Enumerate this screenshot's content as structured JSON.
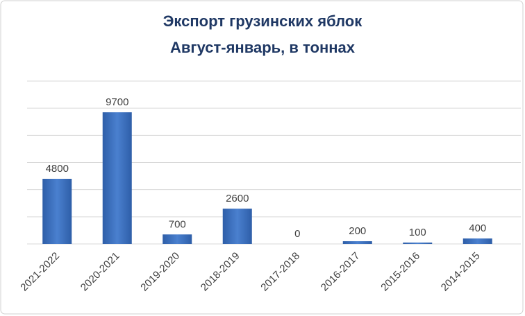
{
  "chart_data": {
    "type": "bar",
    "title": "Экспорт грузинских яблок",
    "subtitle": "Август-январь, в тоннах",
    "categories": [
      "2021-2022",
      "2020-2021",
      "2019-2020",
      "2018-2019",
      "2017-2018",
      "2016-2017",
      "2015-2016",
      "2014-2015"
    ],
    "values": [
      4800,
      9700,
      700,
      2600,
      0,
      200,
      100,
      400
    ],
    "color": "#3a6fc0",
    "ylim": [
      0,
      12000
    ],
    "yticks": [
      0,
      2000,
      4000,
      6000,
      8000,
      10000,
      12000
    ],
    "grid": true
  }
}
